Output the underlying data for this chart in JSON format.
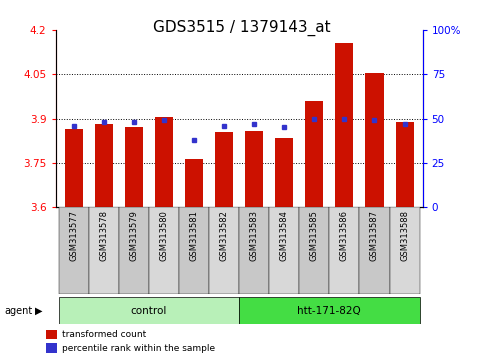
{
  "title": "GDS3515 / 1379143_at",
  "samples": [
    "GSM313577",
    "GSM313578",
    "GSM313579",
    "GSM313580",
    "GSM313581",
    "GSM313582",
    "GSM313583",
    "GSM313584",
    "GSM313585",
    "GSM313586",
    "GSM313587",
    "GSM313588"
  ],
  "red_values": [
    3.865,
    3.882,
    3.872,
    3.905,
    3.762,
    3.856,
    3.858,
    3.835,
    3.96,
    4.155,
    4.055,
    3.888
  ],
  "blue_values_pct": [
    46,
    48,
    48,
    49,
    38,
    46,
    47,
    45,
    50,
    50,
    49,
    47
  ],
  "y_min": 3.6,
  "y_max": 4.2,
  "y_ticks_left": [
    3.6,
    3.75,
    3.9,
    4.05,
    4.2
  ],
  "y_ticks_right": [
    0,
    25,
    50,
    75,
    100
  ],
  "groups": [
    {
      "label": "control",
      "start": 0,
      "end": 5,
      "color": "#b8f0b8"
    },
    {
      "label": "htt-171-82Q",
      "start": 6,
      "end": 11,
      "color": "#44dd44"
    }
  ],
  "agent_label": "agent",
  "bar_color_red": "#cc1100",
  "bar_color_blue": "#3333cc",
  "bg_color": "#ffffff",
  "legend_red": "transformed count",
  "legend_blue": "percentile rank within the sample",
  "bar_width": 0.6,
  "title_fontsize": 11,
  "tick_fontsize": 7.5,
  "xtick_fontsize": 6.0
}
